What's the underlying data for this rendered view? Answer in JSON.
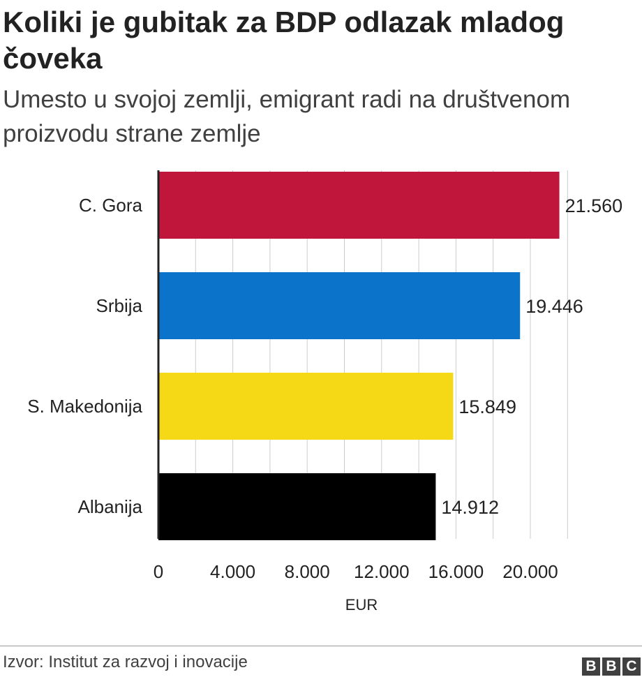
{
  "header": {
    "title": "Koliki je gubitak za BDP odlazak mladog čoveka",
    "subtitle": "Umesto u svojoj zemlji, emigrant radi na društvenom proizvodu strane zemlje"
  },
  "chart_data": {
    "type": "bar",
    "orientation": "horizontal",
    "categories": [
      "C. Gora",
      "Srbija",
      "S. Makedonija",
      "Albanija"
    ],
    "values": [
      21560,
      19446,
      15849,
      14912
    ],
    "value_labels": [
      "21.560",
      "19.446",
      "15.849",
      "14.912"
    ],
    "colors": [
      "#c0163c",
      "#0b73c9",
      "#f5d816",
      "#000000"
    ],
    "xlabel": "EUR",
    "ylabel": "",
    "xlim": [
      0,
      22000
    ],
    "x_ticks": [
      0,
      4000,
      8000,
      12000,
      16000,
      20000
    ],
    "x_tick_labels": [
      "0",
      "4.000",
      "8.000",
      "12.000",
      "16.000",
      "20.000"
    ],
    "grid": true,
    "legend": "none"
  },
  "footer": {
    "source": "Izvor: Institut za razvoj i inovacije",
    "logo_letters": [
      "B",
      "B",
      "C"
    ]
  }
}
